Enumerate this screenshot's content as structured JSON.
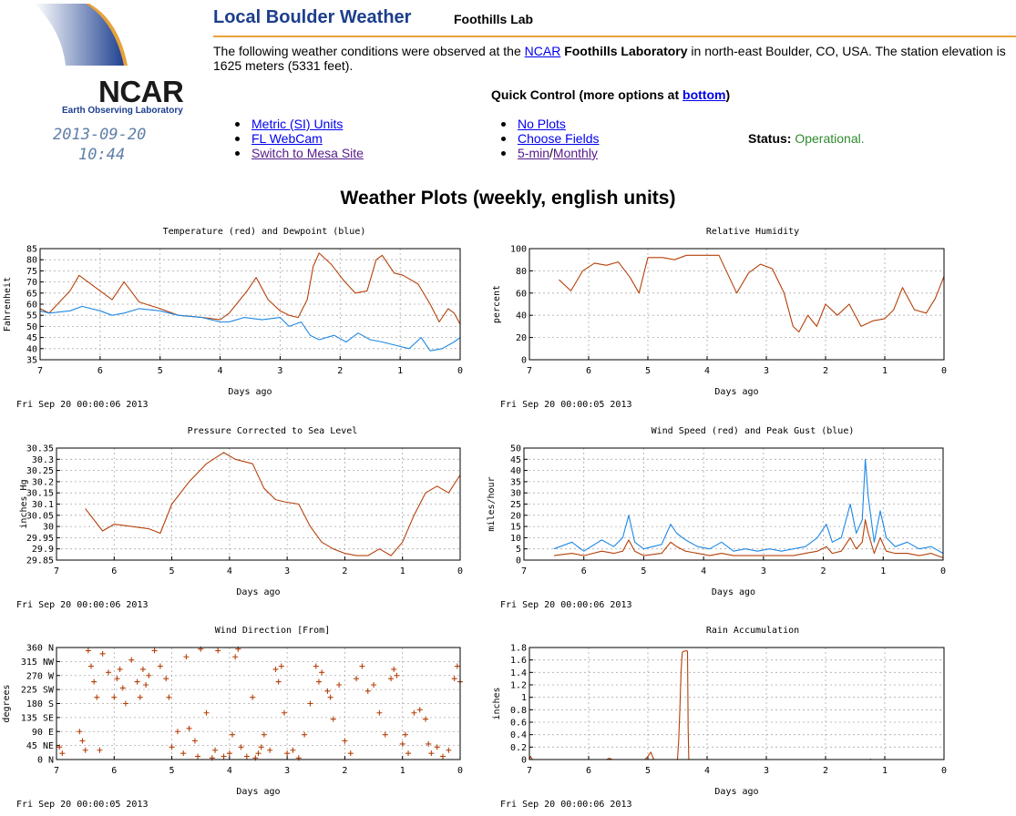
{
  "header": {
    "logo_name": "NCAR",
    "logo_subtitle": "Earth Observing Laboratory",
    "obs_date": "2013-09-20",
    "obs_time": "10:44",
    "title": "Local Boulder Weather",
    "subtitle": "Foothills Lab",
    "rule_color": "#e7a23a"
  },
  "intro": {
    "pre": "The following weather conditions were observed at the ",
    "link_ncar": "NCAR",
    "lab": "Foothills Laboratory",
    "post": " in north-east Boulder, CO, USA. The station elevation is 1625 meters (5331 feet)."
  },
  "quick": {
    "label": "Quick Control (more options at ",
    "link_bottom": "bottom",
    "close": ")",
    "left_links": [
      "Metric (SI) Units",
      "FL WebCam",
      "Switch to Mesa Site"
    ],
    "no_plots": "No Plots",
    "choose_fields": "Choose Fields",
    "five_min": "5-min",
    "slash": "/",
    "monthly": "Monthly",
    "status_label": "Status:",
    "status_value": "Operational."
  },
  "plots_title": "Weather Plots (weekly, english units)",
  "chart_data": [
    {
      "type": "line",
      "title": "Temperature (red) and Dewpoint (blue)",
      "xlabel": "Days ago",
      "ylabel": "Fahrenheit",
      "xlim": [
        7,
        0
      ],
      "ylim": [
        35,
        85
      ],
      "xticks": [
        "7",
        "6",
        "5",
        "4",
        "3",
        "2",
        "1",
        "0"
      ],
      "yticks": [
        "35",
        "40",
        "45",
        "50",
        "55",
        "60",
        "65",
        "70",
        "75",
        "80",
        "85"
      ],
      "timestamp": "Fri Sep 20 00:00:06 2013",
      "grid": true,
      "colors": [
        "#b5410a",
        "#1e88e5"
      ],
      "series": [
        {
          "x": [
            7,
            6.85,
            6.5,
            6.35,
            6,
            5.8,
            5.6,
            5.35,
            5,
            4.7,
            4.3,
            4,
            3.85,
            3.55,
            3.4,
            3.2,
            3,
            2.85,
            2.7,
            2.55,
            2.45,
            2.35,
            2.15,
            1.95,
            1.75,
            1.55,
            1.4,
            1.3,
            1.1,
            0.95,
            0.7,
            0.5,
            0.35,
            0.2,
            0.1,
            0
          ],
          "y": [
            58,
            56,
            66,
            73,
            66,
            62,
            70,
            61,
            58,
            55,
            54,
            53,
            56,
            66,
            72,
            62,
            57,
            55,
            54,
            62,
            77,
            83,
            78,
            71,
            65,
            66,
            80,
            82,
            74,
            73,
            69,
            60,
            52,
            58,
            56,
            51
          ]
        },
        {
          "x": [
            7,
            6.85,
            6.5,
            6.3,
            6,
            5.8,
            5.6,
            5.35,
            5,
            4.7,
            4.3,
            4,
            3.85,
            3.6,
            3.3,
            3,
            2.85,
            2.65,
            2.5,
            2.35,
            2.1,
            1.9,
            1.7,
            1.5,
            1.3,
            1,
            0.85,
            0.65,
            0.5,
            0.3,
            0.1,
            0
          ],
          "y": [
            57,
            56,
            57,
            59,
            57,
            55,
            56,
            58,
            57,
            55,
            54,
            52,
            52,
            54,
            53,
            54,
            50,
            52,
            46,
            44,
            46,
            43,
            47,
            44,
            43,
            41,
            40,
            45,
            39,
            40,
            43,
            45
          ]
        }
      ]
    },
    {
      "type": "line",
      "title": "Relative Humidity",
      "xlabel": "Days ago",
      "ylabel": "percent",
      "xlim": [
        7,
        0
      ],
      "ylim": [
        0,
        100
      ],
      "xticks": [
        "7",
        "6",
        "5",
        "4",
        "3",
        "2",
        "1",
        "0"
      ],
      "yticks": [
        "0",
        "20",
        "40",
        "60",
        "80",
        "100"
      ],
      "timestamp": "Fri Sep 20 00:00:05 2013",
      "grid": true,
      "colors": [
        "#b5410a"
      ],
      "series": [
        {
          "x": [
            6.5,
            6.3,
            6.1,
            5.9,
            5.7,
            5.5,
            5.3,
            5.15,
            5,
            4.75,
            4.55,
            4.35,
            4,
            3.8,
            3.5,
            3.3,
            3.1,
            2.9,
            2.7,
            2.55,
            2.45,
            2.3,
            2.15,
            2,
            1.8,
            1.6,
            1.4,
            1.2,
            1,
            0.85,
            0.7,
            0.5,
            0.3,
            0.15,
            0
          ],
          "y": [
            72,
            62,
            80,
            87,
            85,
            88,
            74,
            60,
            92,
            92,
            90,
            94,
            94,
            94,
            60,
            78,
            86,
            82,
            60,
            30,
            25,
            40,
            30,
            50,
            40,
            50,
            30,
            35,
            37,
            45,
            65,
            45,
            42,
            55,
            75
          ]
        }
      ]
    },
    {
      "type": "line",
      "title": "Pressure Corrected to Sea Level",
      "xlabel": "Days ago",
      "ylabel": "inches Hg",
      "xlim": [
        7,
        0
      ],
      "ylim": [
        29.85,
        30.35
      ],
      "xticks": [
        "7",
        "6",
        "5",
        "4",
        "3",
        "2",
        "1",
        "0"
      ],
      "yticks": [
        "29.85",
        "29.9",
        "29.95",
        "30",
        "30.05",
        "30.1",
        "30.15",
        "30.2",
        "30.25",
        "30.3",
        "30.35"
      ],
      "timestamp": "Fri Sep 20 00:00:06 2013",
      "grid": true,
      "colors": [
        "#b5410a"
      ],
      "series": [
        {
          "x": [
            6.5,
            6.2,
            6,
            5.7,
            5.4,
            5.2,
            5,
            4.7,
            4.4,
            4.1,
            3.9,
            3.6,
            3.4,
            3.2,
            3.05,
            2.8,
            2.6,
            2.4,
            2.2,
            2,
            1.8,
            1.6,
            1.4,
            1.2,
            1,
            0.8,
            0.6,
            0.4,
            0.2,
            0
          ],
          "y": [
            30.08,
            29.98,
            30.01,
            30,
            29.99,
            29.97,
            30.1,
            30.2,
            30.28,
            30.33,
            30.3,
            30.28,
            30.17,
            30.12,
            30.11,
            30.1,
            30.0,
            29.93,
            29.9,
            29.88,
            29.87,
            29.87,
            29.9,
            29.87,
            29.93,
            30.05,
            30.15,
            30.18,
            30.15,
            30.23
          ]
        }
      ]
    },
    {
      "type": "line",
      "title": "Wind Speed (red) and Peak Gust (blue)",
      "xlabel": "Days ago",
      "ylabel": "miles/hour",
      "xlim": [
        7,
        0
      ],
      "ylim": [
        0,
        50
      ],
      "xticks": [
        "7",
        "6",
        "5",
        "4",
        "3",
        "2",
        "1",
        "0"
      ],
      "yticks": [
        "0",
        "5",
        "10",
        "15",
        "20",
        "25",
        "30",
        "35",
        "40",
        "45",
        "50"
      ],
      "timestamp": "Fri Sep 20 00:00:06 2013",
      "grid": true,
      "colors": [
        "#1e88e5",
        "#b5410a"
      ],
      "series": [
        {
          "x": [
            6.5,
            6.2,
            6,
            5.7,
            5.5,
            5.35,
            5.25,
            5.15,
            5,
            4.7,
            4.55,
            4.45,
            4.3,
            4.1,
            3.9,
            3.7,
            3.5,
            3.3,
            3.1,
            2.9,
            2.7,
            2.5,
            2.3,
            2.1,
            1.95,
            1.85,
            1.7,
            1.55,
            1.45,
            1.35,
            1.3,
            1.25,
            1.15,
            1.05,
            0.95,
            0.8,
            0.6,
            0.4,
            0.2,
            0
          ],
          "y": [
            5,
            8,
            4,
            9,
            6,
            10,
            20,
            8,
            5,
            7,
            16,
            12,
            9,
            6,
            5,
            8,
            4,
            5,
            4,
            5,
            4,
            5,
            6,
            10,
            16,
            8,
            10,
            25,
            12,
            18,
            45,
            28,
            8,
            22,
            10,
            6,
            8,
            5,
            6,
            3
          ]
        },
        {
          "x": [
            6.5,
            6.2,
            6,
            5.7,
            5.5,
            5.35,
            5.25,
            5.15,
            5,
            4.7,
            4.55,
            4.45,
            4.3,
            4.1,
            3.9,
            3.7,
            3.5,
            3.3,
            3.1,
            2.9,
            2.7,
            2.5,
            2.3,
            2.1,
            1.95,
            1.85,
            1.7,
            1.55,
            1.45,
            1.35,
            1.3,
            1.25,
            1.15,
            1.05,
            0.95,
            0.8,
            0.6,
            0.4,
            0.2,
            0
          ],
          "y": [
            2,
            3,
            2,
            4,
            3,
            4,
            9,
            4,
            2,
            3,
            8,
            6,
            4,
            3,
            2,
            3,
            2,
            2,
            2,
            2,
            2,
            2,
            3,
            4,
            6,
            3,
            4,
            10,
            5,
            8,
            18,
            12,
            3,
            10,
            4,
            3,
            3,
            2,
            3,
            1
          ]
        }
      ]
    },
    {
      "type": "scatter",
      "title": "Wind Direction [From]",
      "xlabel": "Days ago",
      "ylabel": "degrees",
      "xlim": [
        7,
        0
      ],
      "ylim": [
        0,
        360
      ],
      "xticks": [
        "7",
        "6",
        "5",
        "4",
        "3",
        "2",
        "1",
        "0"
      ],
      "yticks": [
        "0 N",
        "45 NE",
        "90 E",
        "135 SE",
        "180 S",
        "225 SW",
        "270 W",
        "315 NW",
        "360 N"
      ],
      "timestamp": "Fri Sep 20 00:00:05 2013",
      "grid": true,
      "colors": [
        "#b5410a"
      ],
      "marker": "+",
      "series": [
        {
          "x": [
            6.95,
            6.9,
            6.6,
            6.55,
            6.5,
            6.45,
            6.4,
            6.35,
            6.3,
            6.25,
            6.2,
            6.1,
            6.0,
            5.95,
            5.9,
            5.85,
            5.8,
            5.7,
            5.6,
            5.55,
            5.5,
            5.45,
            5.4,
            5.3,
            5.2,
            5.1,
            5.05,
            5.0,
            4.9,
            4.8,
            4.75,
            4.7,
            4.6,
            4.55,
            4.5,
            4.4,
            4.3,
            4.25,
            4.2,
            4.1,
            4.0,
            3.95,
            3.9,
            3.85,
            3.8,
            3.7,
            3.6,
            3.55,
            3.5,
            3.45,
            3.4,
            3.3,
            3.2,
            3.15,
            3.1,
            3.05,
            3.0,
            2.9,
            2.8,
            2.7,
            2.6,
            2.5,
            2.45,
            2.4,
            2.3,
            2.25,
            2.2,
            2.1,
            2.0,
            1.9,
            1.8,
            1.7,
            1.6,
            1.5,
            1.4,
            1.3,
            1.2,
            1.15,
            1.1,
            1.0,
            0.95,
            0.9,
            0.8,
            0.7,
            0.6,
            0.55,
            0.5,
            0.4,
            0.3,
            0.2,
            0.1,
            0.05,
            0.0
          ],
          "y": [
            40,
            20,
            90,
            60,
            30,
            350,
            300,
            250,
            200,
            30,
            340,
            280,
            200,
            260,
            290,
            230,
            180,
            320,
            250,
            200,
            290,
            240,
            270,
            350,
            300,
            260,
            200,
            40,
            90,
            20,
            330,
            100,
            60,
            10,
            355,
            150,
            5,
            30,
            350,
            10,
            20,
            80,
            330,
            355,
            40,
            10,
            200,
            5,
            20,
            40,
            80,
            30,
            290,
            250,
            300,
            150,
            20,
            30,
            5,
            80,
            180,
            300,
            250,
            280,
            220,
            200,
            130,
            240,
            60,
            20,
            260,
            300,
            220,
            240,
            150,
            80,
            260,
            290,
            270,
            50,
            80,
            20,
            150,
            160,
            130,
            50,
            20,
            40,
            10,
            30,
            260,
            300,
            250
          ]
        }
      ]
    },
    {
      "type": "line",
      "title": "Rain Accumulation",
      "xlabel": "Days ago",
      "ylabel": "inches",
      "xlim": [
        7,
        0
      ],
      "ylim": [
        0,
        1.8
      ],
      "xticks": [
        "7",
        "6",
        "5",
        "4",
        "3",
        "2",
        "1",
        "0"
      ],
      "yticks": [
        "0",
        "0.2",
        "0.4",
        "0.6",
        "0.8",
        "1",
        "1.2",
        "1.4",
        "1.6",
        "1.8"
      ],
      "timestamp": "Fri Sep 20 00:00:06 2013",
      "grid": true,
      "colors": [
        "#b5410a"
      ],
      "series": [
        {
          "x": [
            7,
            6.98,
            6.95,
            5.7,
            5.65,
            5.6,
            5.05,
            5.0,
            4.95,
            4.9,
            4.5,
            4.48,
            4.46,
            4.44,
            4.42,
            4.4,
            4.38,
            4.35,
            4.33,
            4.32,
            4.31,
            1.25,
            1.23
          ],
          "y": [
            0,
            0.05,
            0,
            0,
            0.02,
            0,
            0,
            0.05,
            0.12,
            0,
            0,
            0.3,
            0.8,
            1.4,
            1.72,
            1.74,
            1.74,
            1.75,
            1.74,
            0.5,
            0,
            0,
            0.01
          ]
        }
      ]
    }
  ]
}
